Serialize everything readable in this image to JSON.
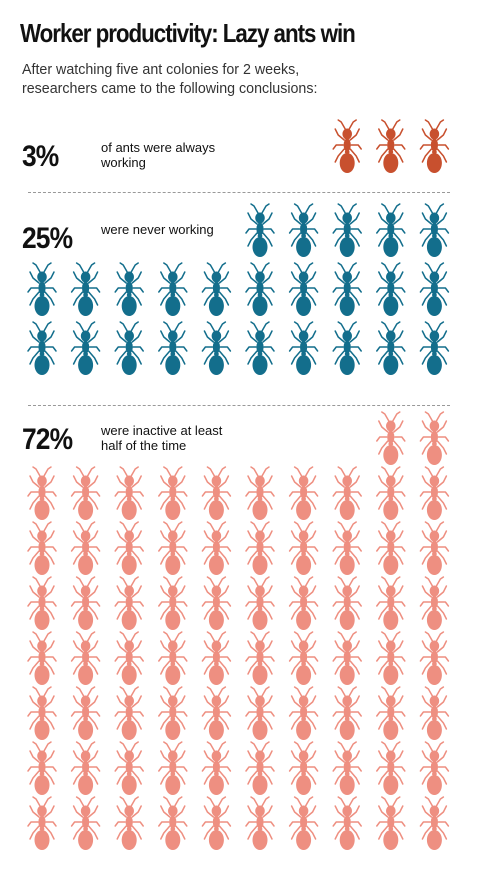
{
  "title": "Worker productivity: Lazy ants win",
  "subtitle": "After watching five ant colonies for 2 weeks, researchers came to the following conclusions:",
  "chart_data": {
    "type": "pictograph",
    "icon": "ant-icon",
    "categories": [
      {
        "name": "always-working",
        "value_label": "3%",
        "value": 3,
        "label": "of ants were always working",
        "color": "#c8502e"
      },
      {
        "name": "never-working",
        "value_label": "25%",
        "value": 25,
        "label": "were never working",
        "color": "#136e8c"
      },
      {
        "name": "inactive-half",
        "value_label": "72%",
        "value": 72,
        "label": "were inactive at least half of the time",
        "color": "#ee8f81"
      }
    ]
  }
}
